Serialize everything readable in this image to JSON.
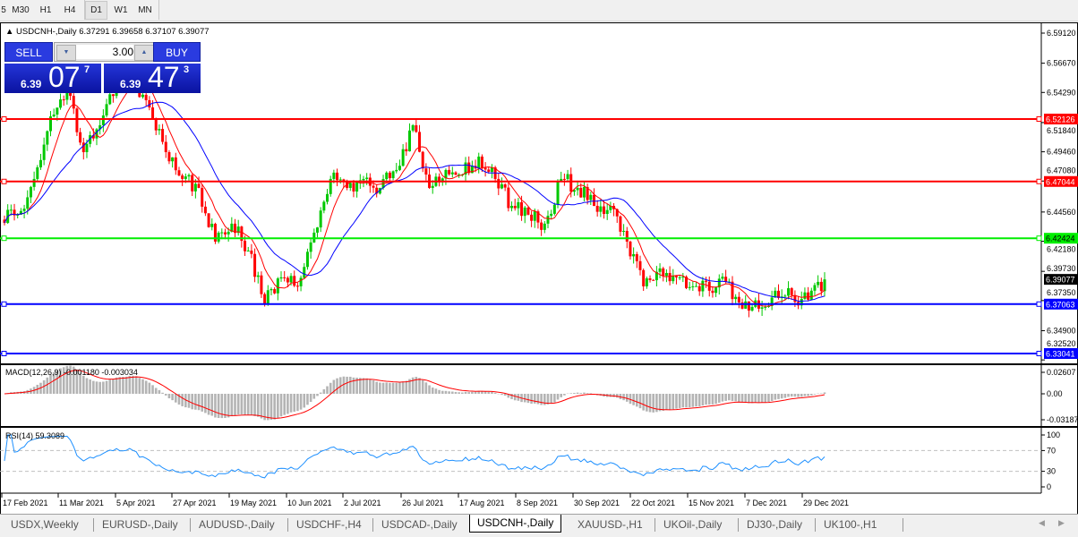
{
  "toolbar": {
    "timeframes": [
      "5",
      "M30",
      "H1",
      "H4",
      "D1",
      "W1",
      "MN"
    ],
    "active": "D1"
  },
  "chart": {
    "header": "USDCNH-,Daily  6.37291 6.39658 6.37107 6.39077",
    "trade_panel": {
      "sell_label": "SELL",
      "buy_label": "BUY",
      "volume": "3.00",
      "sell_price_small": "6.39",
      "sell_price_big": "07",
      "sell_price_sup": "7",
      "buy_price_small": "6.39",
      "buy_price_big": "47",
      "buy_price_sup": "3"
    },
    "macd_label": "MACD(12,26,9) -0.001180 -0.003034",
    "rsi_label": "RSI(14) 59.3089"
  },
  "chart_data": {
    "type": "candlestick",
    "symbol": "USDCNH-",
    "period": "Daily",
    "price_axis_ticks": [
      "6.59120",
      "6.56670",
      "6.54290",
      "6.51840",
      "6.49460",
      "6.47080",
      "6.44560",
      "6.42180",
      "6.39730",
      "6.37350",
      "6.34900",
      "6.32520"
    ],
    "ylim": [
      6.3252,
      6.5912
    ],
    "weekly_closes": [
      6.4434,
      6.4725,
      6.5234,
      6.5453,
      6.4943,
      6.5162,
      6.5526,
      6.5562,
      6.5307,
      6.4943,
      6.4725,
      6.4652,
      6.4215,
      6.4361,
      6.4142,
      6.3706,
      6.3924,
      6.3851,
      6.4288,
      6.4725,
      6.4652,
      6.4725,
      6.4652,
      6.4798,
      6.5162,
      6.4652,
      6.4798,
      6.4761,
      6.4907,
      6.4725,
      6.4506,
      6.4434,
      6.4361,
      6.4725,
      6.4652,
      6.4506,
      6.4506,
      6.4215,
      6.3851,
      6.3997,
      6.3924,
      6.3851,
      6.3815,
      6.3888,
      6.3669,
      6.3669,
      6.3815,
      6.3779,
      6.3742,
      6.39077
    ],
    "current_price": "6.39077",
    "levels": [
      {
        "value": "6.52126",
        "color": "#ff0000"
      },
      {
        "value": "6.47044",
        "color": "#ff0000"
      },
      {
        "value": "6.42424",
        "color": "#00ee00"
      },
      {
        "value": "6.37063",
        "color": "#0000ff"
      },
      {
        "value": "6.33041",
        "color": "#0000ff"
      }
    ],
    "date_labels": [
      "17 Feb 2021",
      "11 Mar 2021",
      "5 Apr 2021",
      "27 Apr 2021",
      "19 May 2021",
      "10 Jun 2021",
      "2 Jul 2021",
      "26 Jul 2021",
      "17 Aug 2021",
      "8 Sep 2021",
      "30 Sep 2021",
      "22 Oct 2021",
      "15 Nov 2021",
      "7 Dec 2021",
      "29 Dec 2021"
    ],
    "macd_axis": [
      "0.02607",
      "0.00",
      "-0.03187"
    ],
    "rsi_axis": [
      "100",
      "70",
      "30",
      "0"
    ],
    "colors": {
      "bull": "#00c800",
      "bear": "#ff0000",
      "ma_fast": "#ff0000",
      "ma_slow": "#0000ff",
      "macd_hist": "#b4b4b4",
      "macd_signal": "#ff0000",
      "rsi": "#1e90ff"
    }
  },
  "tabs": [
    "USDX,Weekly",
    "EURUSD-,Daily",
    "AUDUSD-,Daily",
    "USDCHF-,H4",
    "USDCAD-,Daily",
    "USDCNH-,Daily",
    "XAUUSD-,H1",
    "UKOil-,Daily",
    "DJ30-,Daily",
    "UK100-,H1"
  ],
  "active_tab": "USDCNH-,Daily"
}
